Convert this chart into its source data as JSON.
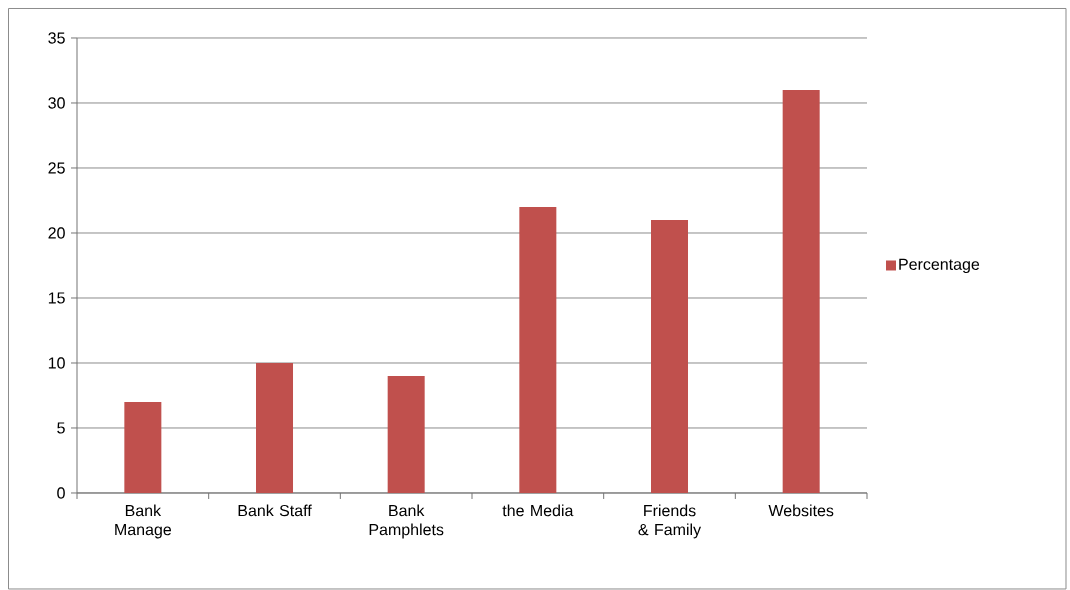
{
  "chart_data": {
    "type": "bar",
    "categories": [
      "Bank Manage",
      "Bank Staff",
      "Bank Pamphlets",
      "the Media",
      "Friends & Family",
      "Websites"
    ],
    "series": [
      {
        "name": "Percentage",
        "color": "#c0504d",
        "values": [
          7,
          10,
          9,
          22,
          21,
          31
        ]
      }
    ],
    "ylim": [
      0,
      35
    ],
    "yticks": [
      0,
      5,
      10,
      15,
      20,
      25,
      30,
      35
    ],
    "grid": "y",
    "legend": "right"
  }
}
